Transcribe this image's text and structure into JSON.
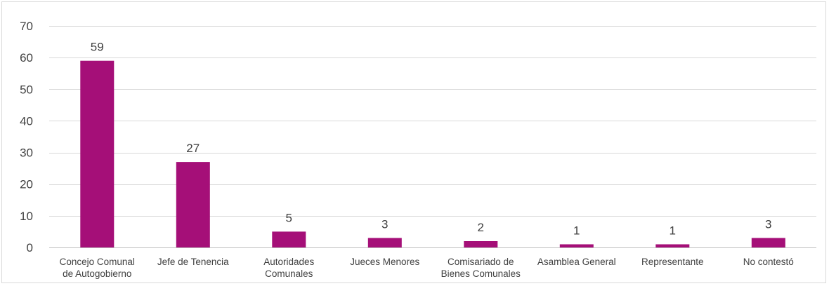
{
  "chart_data": {
    "type": "bar",
    "categories": [
      "Concejo Comunal de Autogobierno",
      "Jefe de Tenencia",
      "Autoridades Comunales",
      "Jueces Menores",
      "Comisariado de Bienes Comunales",
      "Asamblea General",
      "Representante",
      "No contestó"
    ],
    "category_lines": [
      [
        "Concejo Comunal",
        "de Autogobierno"
      ],
      [
        "Jefe de Tenencia"
      ],
      [
        "Autoridades",
        "Comunales"
      ],
      [
        "Jueces Menores"
      ],
      [
        "Comisariado de",
        "Bienes Comunales"
      ],
      [
        "Asamblea General"
      ],
      [
        "Representante"
      ],
      [
        "No contestó"
      ]
    ],
    "values": [
      59,
      27,
      5,
      3,
      2,
      1,
      1,
      3
    ],
    "data_labels": [
      "59",
      "27",
      "5",
      "3",
      "2",
      "1",
      "1",
      "3"
    ],
    "ylim": [
      0,
      70
    ],
    "yticks": [
      0,
      10,
      20,
      30,
      40,
      50,
      60,
      70
    ],
    "ytick_labels": [
      "0",
      "10",
      "20",
      "30",
      "40",
      "50",
      "60",
      "70"
    ],
    "title": "",
    "xlabel": "",
    "ylabel": "",
    "grid": true,
    "legend": "none",
    "colors": {
      "bar": "#a50f78",
      "grid": "#d9d9d9",
      "axis": "#bfbfbf",
      "text": "#404040",
      "border": "#d9d9d9"
    }
  }
}
